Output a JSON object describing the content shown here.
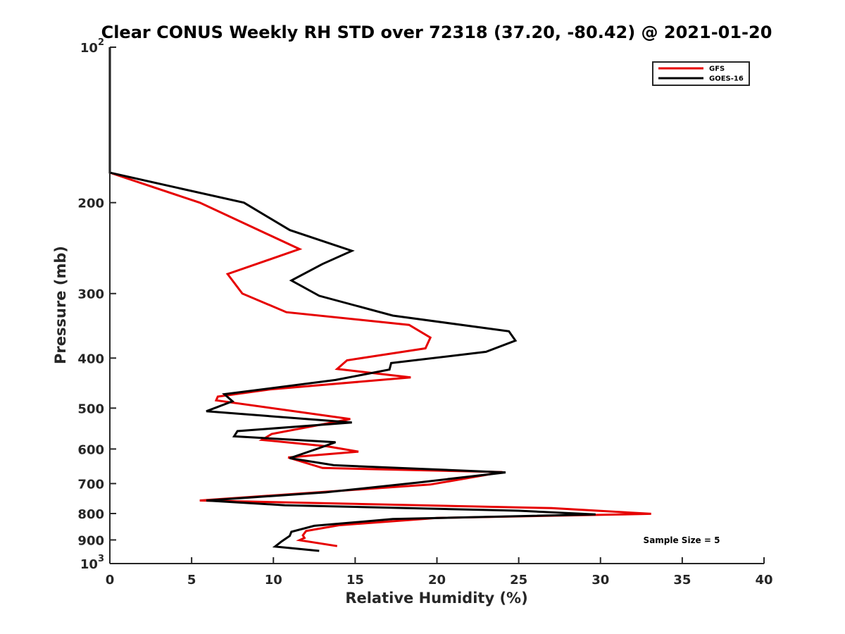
{
  "chart_data": {
    "type": "line",
    "title": "Clear CONUS Weekly RH STD over 72318 (37.20, -80.42) @ 2021-01-20",
    "xlabel": "Relative Humidity (%)",
    "ylabel": "Pressure (mb)",
    "xlim": [
      0,
      40
    ],
    "ylim": [
      100,
      1000
    ],
    "yscale": "log",
    "y_reversed": true,
    "grid": false,
    "legend_position": "top-right",
    "x_ticks": [
      "0",
      "5",
      "10",
      "15",
      "20",
      "25",
      "30",
      "35",
      "40"
    ],
    "x_tick_values": [
      0,
      5,
      10,
      15,
      20,
      25,
      30,
      35,
      40
    ],
    "y_ticks": [
      {
        "value": 100,
        "base": "10",
        "exp": "2"
      },
      {
        "value": 200,
        "label": "200"
      },
      {
        "value": 300,
        "label": "300"
      },
      {
        "value": 400,
        "label": "400"
      },
      {
        "value": 500,
        "label": "500"
      },
      {
        "value": 600,
        "label": "600"
      },
      {
        "value": 700,
        "label": "700"
      },
      {
        "value": 800,
        "label": "800"
      },
      {
        "value": 900,
        "label": "900"
      },
      {
        "value": 1000,
        "base": "10",
        "exp": "3"
      }
    ],
    "annotation": "Sample Size = 5",
    "series": [
      {
        "name": "GFS",
        "color": "#e60000",
        "points": [
          [
            0,
            100
          ],
          [
            0,
            175
          ],
          [
            5.5,
            200
          ],
          [
            11.6,
            246
          ],
          [
            7.2,
            275
          ],
          [
            8.1,
            300
          ],
          [
            10.8,
            326
          ],
          [
            18.3,
            345
          ],
          [
            19.6,
            365
          ],
          [
            19.3,
            383
          ],
          [
            14.5,
            404
          ],
          [
            13.9,
            420
          ],
          [
            18.4,
            436
          ],
          [
            9.8,
            460
          ],
          [
            6.6,
            475
          ],
          [
            6.5,
            483
          ],
          [
            14.7,
            525
          ],
          [
            9.9,
            561
          ],
          [
            9.3,
            576
          ],
          [
            13.3,
            593
          ],
          [
            15.2,
            607
          ],
          [
            10.9,
            623
          ],
          [
            13.0,
            653
          ],
          [
            24.0,
            665
          ],
          [
            19.6,
            703
          ],
          [
            5.5,
            755
          ],
          [
            27.0,
            781
          ],
          [
            33.1,
            801
          ],
          [
            20.0,
            816
          ],
          [
            14.0,
            843
          ],
          [
            12.0,
            865
          ],
          [
            11.8,
            882
          ],
          [
            11.9,
            892
          ],
          [
            11.6,
            901
          ],
          [
            13.9,
            925
          ]
        ]
      },
      {
        "name": "GOES-16",
        "color": "#000000",
        "points": [
          [
            0,
            100
          ],
          [
            0,
            175
          ],
          [
            8.2,
            200
          ],
          [
            11.0,
            226
          ],
          [
            14.8,
            248
          ],
          [
            13.0,
            263
          ],
          [
            11.1,
            283
          ],
          [
            12.8,
            303
          ],
          [
            17.3,
            331
          ],
          [
            24.4,
            355
          ],
          [
            24.8,
            370
          ],
          [
            23.0,
            389
          ],
          [
            17.2,
            409
          ],
          [
            17.1,
            421
          ],
          [
            13.8,
            441
          ],
          [
            7.0,
            470
          ],
          [
            7.5,
            485
          ],
          [
            5.9,
            507
          ],
          [
            14.8,
            533
          ],
          [
            7.8,
            554
          ],
          [
            7.6,
            567
          ],
          [
            13.8,
            582
          ],
          [
            12.7,
            599
          ],
          [
            11.0,
            625
          ],
          [
            13.7,
            645
          ],
          [
            24.2,
            666
          ],
          [
            18.8,
            697
          ],
          [
            13.2,
            728
          ],
          [
            5.9,
            755
          ],
          [
            10.7,
            771
          ],
          [
            25.0,
            790
          ],
          [
            29.7,
            803
          ],
          [
            17.3,
            820
          ],
          [
            12.5,
            845
          ],
          [
            11.1,
            868
          ],
          [
            11.0,
            884
          ],
          [
            10.5,
            906
          ],
          [
            10.1,
            927
          ],
          [
            12.8,
            945
          ]
        ]
      }
    ]
  }
}
